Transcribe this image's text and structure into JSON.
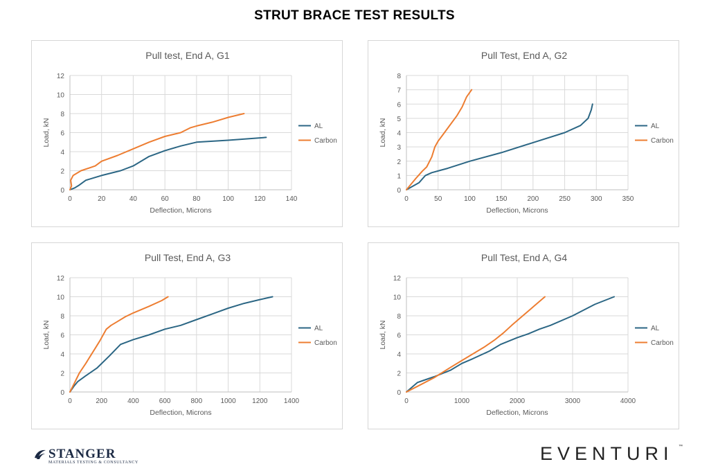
{
  "page": {
    "title": "STRUT BRACE TEST RESULTS"
  },
  "logos": {
    "left": {
      "name": "STANGER",
      "tagline": "MATERIALS TESTING & CONSULTANCY"
    },
    "right": {
      "name": "EVENTURI",
      "tm": "™"
    }
  },
  "colors": {
    "AL": "#2b6684",
    "Carbon": "#ed7d31"
  },
  "chart_data": [
    {
      "type": "line",
      "title": "Pull test, End A, G1",
      "xlabel": "Deflection, Microns",
      "ylabel": "Load, kN",
      "xlim": [
        0,
        140
      ],
      "ylim": [
        0,
        12
      ],
      "xticks": [
        0,
        20,
        40,
        60,
        80,
        100,
        120,
        140
      ],
      "yticks": [
        0,
        2,
        4,
        6,
        8,
        10,
        12
      ],
      "grid": true,
      "legend": "right",
      "series": [
        {
          "name": "AL",
          "x": [
            0,
            3,
            6,
            10,
            20,
            32,
            40,
            50,
            60,
            70,
            80,
            100,
            124
          ],
          "y": [
            0,
            0.2,
            0.5,
            1.0,
            1.5,
            2.0,
            2.5,
            3.5,
            4.1,
            4.6,
            5.0,
            5.2,
            5.5
          ]
        },
        {
          "name": "Carbon",
          "x": [
            0,
            1,
            0.5,
            2,
            7,
            16,
            20,
            30,
            40,
            50,
            60,
            70,
            76,
            80,
            90,
            100,
            110
          ],
          "y": [
            0,
            0.4,
            1.0,
            1.5,
            2.0,
            2.5,
            3.0,
            3.6,
            4.3,
            5.0,
            5.6,
            6.0,
            6.5,
            6.7,
            7.1,
            7.6,
            8.0
          ]
        }
      ]
    },
    {
      "type": "line",
      "title": "Pull Test, End A, G2",
      "xlabel": "Deflection, Microns",
      "ylabel": "Load, kN",
      "xlim": [
        0,
        350
      ],
      "ylim": [
        0,
        8
      ],
      "xticks": [
        0,
        50,
        100,
        150,
        200,
        250,
        300,
        350
      ],
      "yticks": [
        0,
        1,
        2,
        3,
        4,
        5,
        6,
        7,
        8
      ],
      "grid": true,
      "legend": "right",
      "series": [
        {
          "name": "AL",
          "x": [
            0,
            20,
            30,
            40,
            65,
            100,
            150,
            200,
            250,
            275,
            287,
            292,
            294
          ],
          "y": [
            0,
            0.5,
            1.0,
            1.2,
            1.5,
            2.0,
            2.6,
            3.3,
            4.0,
            4.5,
            5.0,
            5.6,
            6.0
          ]
        },
        {
          "name": "Carbon",
          "x": [
            0,
            15,
            25,
            32,
            40,
            45,
            50,
            60,
            70,
            80,
            88,
            95,
            103
          ],
          "y": [
            0,
            0.8,
            1.3,
            1.6,
            2.3,
            3.0,
            3.4,
            4.0,
            4.6,
            5.2,
            5.8,
            6.5,
            7.0
          ]
        }
      ]
    },
    {
      "type": "line",
      "title": "Pull Test, End A, G3",
      "xlabel": "Deflection, Microns",
      "ylabel": "Load, kN",
      "xlim": [
        0,
        1400
      ],
      "ylim": [
        0,
        12
      ],
      "xticks": [
        0,
        200,
        400,
        600,
        800,
        1000,
        1200,
        1400
      ],
      "yticks": [
        0,
        2,
        4,
        6,
        8,
        10,
        12
      ],
      "grid": true,
      "legend": "right",
      "series": [
        {
          "name": "AL",
          "x": [
            0,
            25,
            50,
            100,
            170,
            250,
            320,
            400,
            500,
            600,
            700,
            800,
            900,
            1000,
            1100,
            1200,
            1280
          ],
          "y": [
            0,
            0.6,
            1.1,
            1.7,
            2.5,
            3.8,
            5.0,
            5.5,
            6.0,
            6.6,
            7.0,
            7.6,
            8.2,
            8.8,
            9.3,
            9.7,
            10.0
          ]
        },
        {
          "name": "Carbon",
          "x": [
            0,
            30,
            60,
            100,
            130,
            160,
            190,
            210,
            230,
            260,
            300,
            350,
            400,
            500,
            580,
            620
          ],
          "y": [
            0,
            1.0,
            2.0,
            3.0,
            3.8,
            4.6,
            5.4,
            6.0,
            6.6,
            7.0,
            7.4,
            7.9,
            8.3,
            9.0,
            9.6,
            10.0
          ]
        }
      ]
    },
    {
      "type": "line",
      "title": "Pull Test, End A, G4",
      "xlabel": "Deflection, Microns",
      "ylabel": "Load, kN",
      "xlim": [
        0,
        4000
      ],
      "ylim": [
        0,
        12
      ],
      "xticks": [
        0,
        1000,
        2000,
        3000,
        4000
      ],
      "yticks": [
        0,
        2,
        4,
        6,
        8,
        10,
        12
      ],
      "grid": true,
      "legend": "right",
      "series": [
        {
          "name": "AL",
          "x": [
            0,
            100,
            200,
            300,
            500,
            800,
            1000,
            1200,
            1500,
            1700,
            2000,
            2200,
            2400,
            2600,
            3000,
            3400,
            3750
          ],
          "y": [
            0,
            0.5,
            1.0,
            1.2,
            1.6,
            2.3,
            3.0,
            3.5,
            4.3,
            5.0,
            5.7,
            6.1,
            6.6,
            7.0,
            8.0,
            9.2,
            10.0
          ]
        },
        {
          "name": "Carbon",
          "x": [
            0,
            200,
            500,
            800,
            1000,
            1200,
            1400,
            1600,
            1750,
            1900,
            2100,
            2300,
            2500
          ],
          "y": [
            0,
            0.6,
            1.5,
            2.6,
            3.3,
            4.0,
            4.7,
            5.5,
            6.2,
            7.0,
            8.0,
            9.0,
            10.0
          ]
        }
      ]
    }
  ]
}
